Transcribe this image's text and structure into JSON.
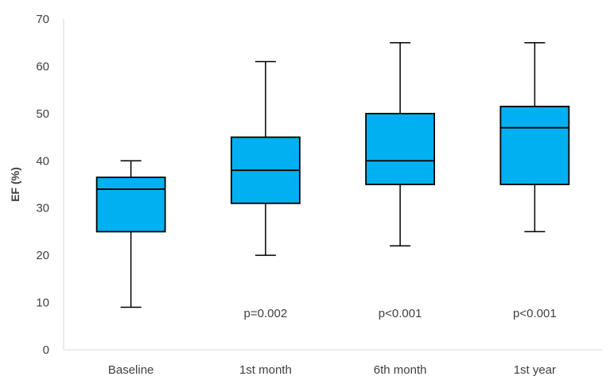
{
  "chart_data": {
    "type": "box",
    "title": "",
    "xlabel": "",
    "ylabel": "EF (%)",
    "ylim": [
      0,
      70
    ],
    "yticks": [
      0,
      10,
      20,
      30,
      40,
      50,
      60,
      70
    ],
    "grid": false,
    "legend": "none",
    "box_color": "#00B0F0",
    "categories": [
      "Baseline",
      "1st month",
      "6th month",
      "1st year"
    ],
    "boxes": [
      {
        "category": "Baseline",
        "min": 9,
        "q1": 25,
        "median": 34,
        "q3": 36.5,
        "max": 40,
        "annotation": ""
      },
      {
        "category": "1st month",
        "min": 20,
        "q1": 31,
        "median": 38,
        "q3": 45,
        "max": 61,
        "annotation": "p=0.002"
      },
      {
        "category": "6th month",
        "min": 22,
        "q1": 35,
        "median": 40,
        "q3": 50,
        "max": 65,
        "annotation": "p<0.001"
      },
      {
        "category": "1st year",
        "min": 25,
        "q1": 35,
        "median": 47,
        "q3": 51.5,
        "max": 65,
        "annotation": "p<0.001"
      }
    ]
  }
}
